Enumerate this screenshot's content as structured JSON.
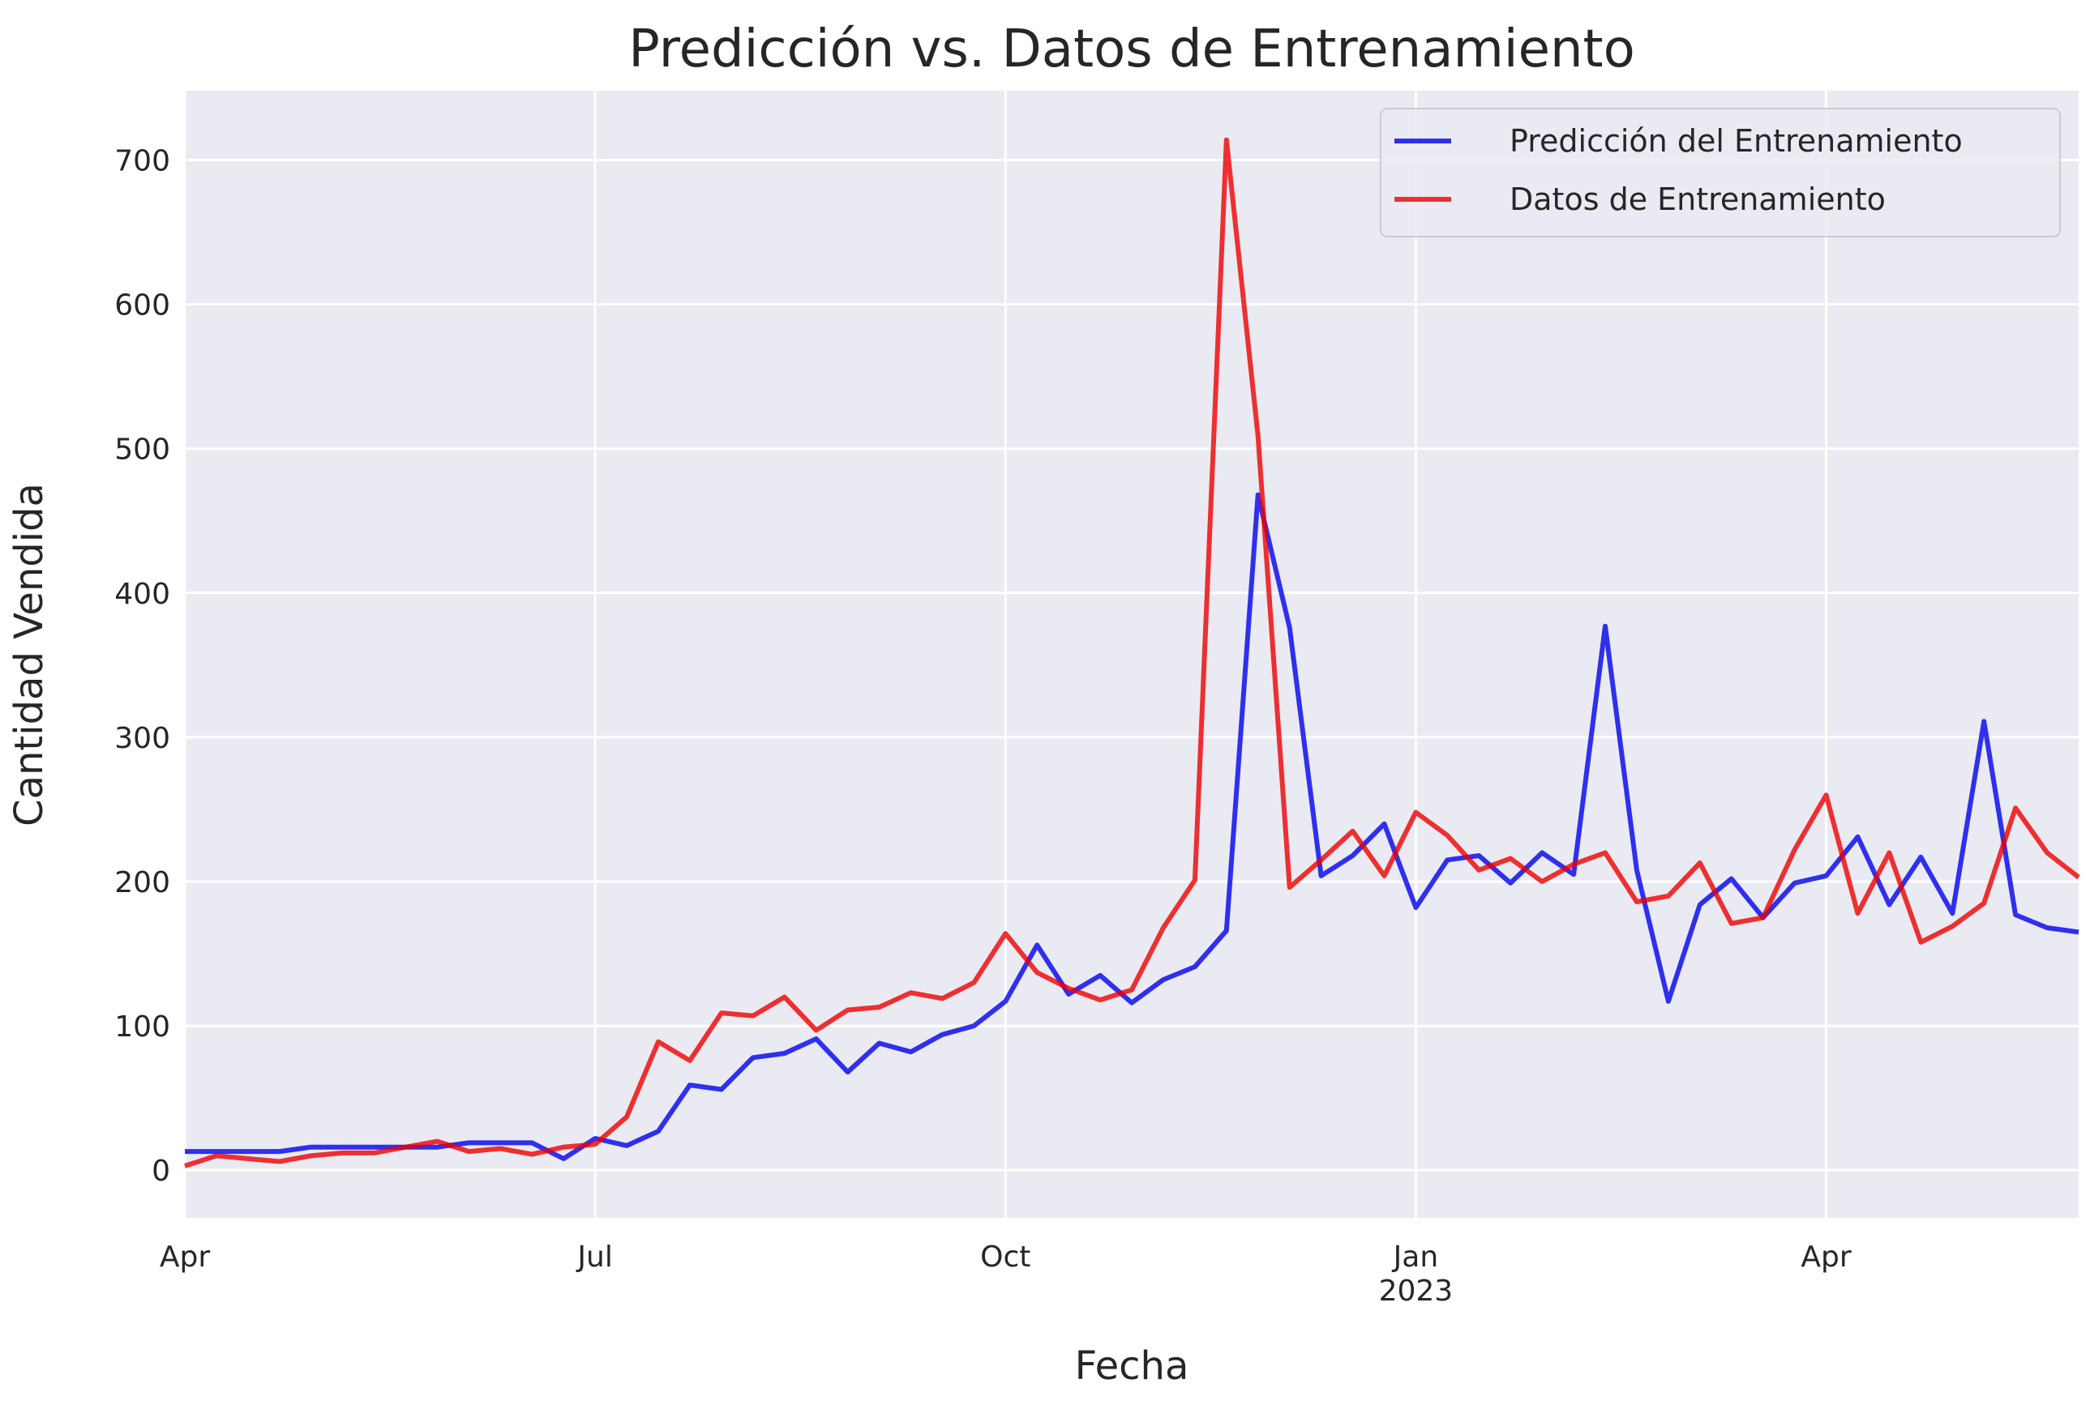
{
  "chart_data": {
    "type": "line",
    "title": "Predicción vs. Datos de Entrenamiento",
    "xlabel": "Fecha",
    "ylabel": "Cantidad Vendida",
    "x_axis": "weekly dates",
    "xlim": [
      "2022-04-03",
      "2023-05-28"
    ],
    "ylim": [
      -33,
      748
    ],
    "yticks": [
      0,
      100,
      200,
      300,
      400,
      500,
      600,
      700
    ],
    "xticks": [
      {
        "date": "2022-04-03",
        "label": "Apr",
        "sublabel": ""
      },
      {
        "date": "2022-07-03",
        "label": "Jul",
        "sublabel": ""
      },
      {
        "date": "2022-10-02",
        "label": "Oct",
        "sublabel": ""
      },
      {
        "date": "2023-01-01",
        "label": "Jan",
        "sublabel": "2023"
      },
      {
        "date": "2023-04-02",
        "label": "Apr",
        "sublabel": ""
      }
    ],
    "grid": true,
    "legend_position": "top-right",
    "x": [
      "2022-04-03",
      "2022-04-10",
      "2022-04-17",
      "2022-04-24",
      "2022-05-01",
      "2022-05-08",
      "2022-05-15",
      "2022-05-22",
      "2022-05-29",
      "2022-06-05",
      "2022-06-12",
      "2022-06-19",
      "2022-06-26",
      "2022-07-03",
      "2022-07-10",
      "2022-07-17",
      "2022-07-24",
      "2022-07-31",
      "2022-08-07",
      "2022-08-14",
      "2022-08-21",
      "2022-08-28",
      "2022-09-04",
      "2022-09-11",
      "2022-09-18",
      "2022-09-25",
      "2022-10-02",
      "2022-10-09",
      "2022-10-16",
      "2022-10-23",
      "2022-10-30",
      "2022-11-06",
      "2022-11-13",
      "2022-11-20",
      "2022-11-27",
      "2022-12-04",
      "2022-12-11",
      "2022-12-18",
      "2022-12-25",
      "2023-01-01",
      "2023-01-08",
      "2023-01-15",
      "2023-01-22",
      "2023-01-29",
      "2023-02-05",
      "2023-02-12",
      "2023-02-19",
      "2023-02-26",
      "2023-03-05",
      "2023-03-12",
      "2023-03-19",
      "2023-03-26",
      "2023-04-02",
      "2023-04-09",
      "2023-04-16",
      "2023-04-23",
      "2023-04-30",
      "2023-05-07",
      "2023-05-14",
      "2023-05-21",
      "2023-05-28"
    ],
    "series": [
      {
        "name": "Predicción del Entrenamiento",
        "color": "#0000ee",
        "values": [
          13,
          13,
          13,
          13,
          16,
          16,
          16,
          16,
          16,
          19,
          19,
          19,
          8,
          22,
          17,
          27,
          59,
          56,
          78,
          81,
          91,
          68,
          88,
          82,
          94,
          100,
          117,
          156,
          122,
          135,
          116,
          132,
          141,
          166,
          468,
          376,
          204,
          218,
          240,
          182,
          215,
          218,
          199,
          220,
          205,
          377,
          208,
          117,
          184,
          202,
          175,
          199,
          204,
          231,
          184,
          217,
          178,
          311,
          177,
          168,
          165
        ]
      },
      {
        "name": "Datos de Entrenamiento",
        "color": "#ee0000",
        "values": [
          3,
          10,
          8,
          6,
          10,
          12,
          12,
          16,
          20,
          13,
          15,
          11,
          16,
          18,
          37,
          89,
          76,
          109,
          107,
          120,
          97,
          111,
          113,
          123,
          119,
          130,
          164,
          137,
          126,
          118,
          125,
          168,
          201,
          714,
          509,
          196,
          215,
          235,
          204,
          248,
          232,
          208,
          216,
          200,
          212,
          220,
          186,
          190,
          213,
          171,
          175,
          222,
          260,
          178,
          220,
          158,
          169,
          185,
          251,
          220,
          203
        ]
      }
    ],
    "colors": {
      "plot_background": "#eaeaf2",
      "grid": "#ffffff"
    }
  }
}
